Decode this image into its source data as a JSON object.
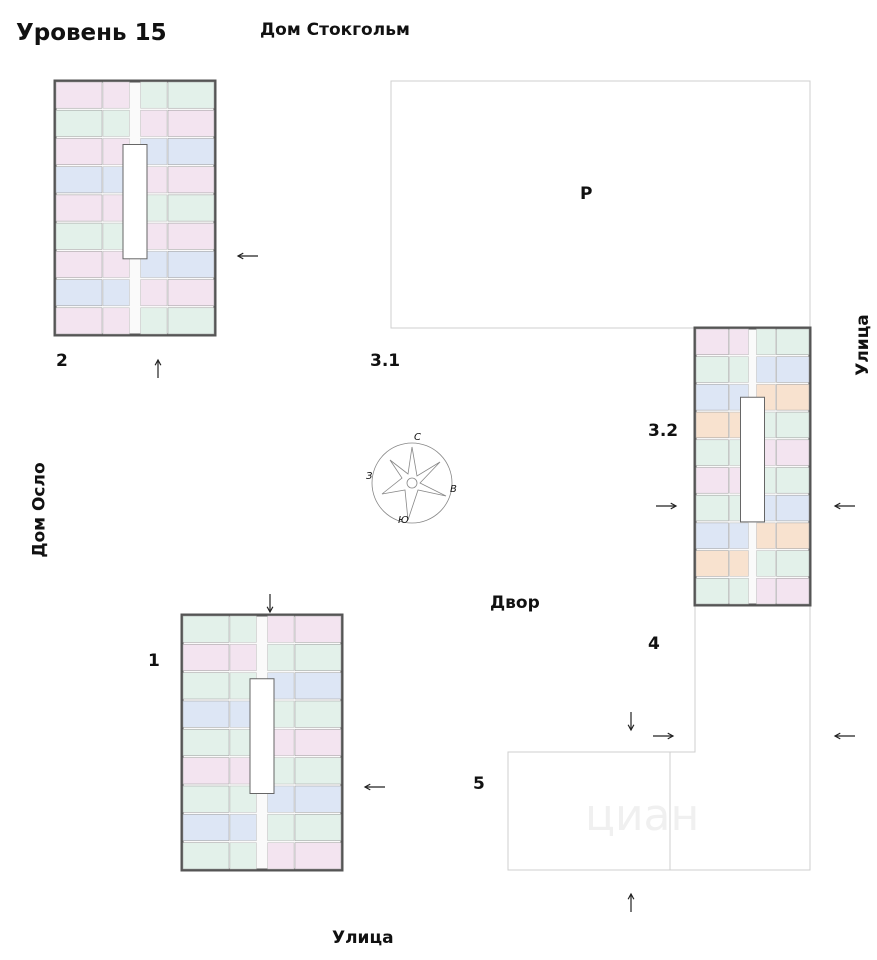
{
  "title": "Уровень 15",
  "labels": {
    "house_stockholm": "Дом Стокгольм",
    "house_oslo": "Дом Осло",
    "street_right": "Улица",
    "street_bottom": "Улица",
    "yard": "Двор",
    "parking": "Р"
  },
  "sections": [
    "1",
    "2",
    "3.1",
    "3.2",
    "4",
    "5"
  ],
  "compass": {
    "north": "С",
    "south": "Ю",
    "east": "В",
    "west": "З"
  },
  "watermark": "циан",
  "colors": {
    "pink": "#f3e4f0",
    "green": "#e3f1ea",
    "blue": "#dde6f5",
    "orange": "#f8e2cf",
    "wall": "#555555"
  }
}
